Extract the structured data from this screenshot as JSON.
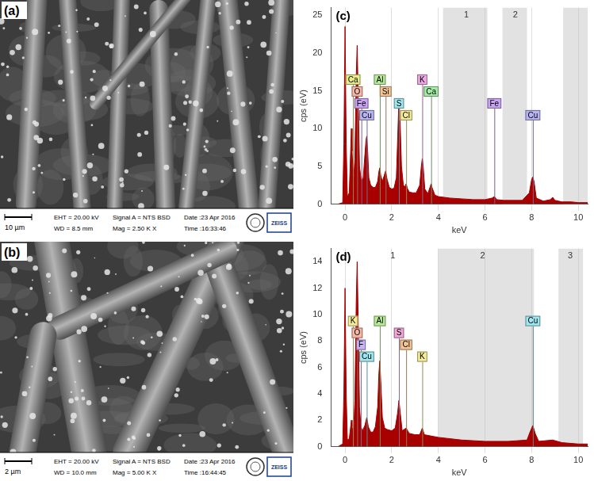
{
  "images": [
    {
      "panel": "(a)",
      "scale_bar": "10 µm",
      "info": [
        "EHT = 20.00 kV",
        "WD = 8.5 mm",
        "Signal A = NTS BSD",
        "Mag = 2.50 K X",
        "Date :23 Apr 2016",
        "Time :16:33:46"
      ],
      "logo": "ZEISS"
    },
    {
      "panel": "(b)",
      "scale_bar": "2 µm",
      "info": [
        "EHT = 20.00 kV",
        "WD = 10.0 mm",
        "Signal A = NTS BSD",
        "Mag = 5.00 K X",
        "Date :23 Apr 2016",
        "Time :16:44:45"
      ],
      "logo": "ZEISS"
    }
  ],
  "chart_data": [
    {
      "type": "area",
      "panel": "(c)",
      "x_label": "keV",
      "y_label": "cps (eV)",
      "color": "#a80000",
      "x": [
        -0.3,
        -0.1,
        -0.05,
        0,
        0.05,
        0.1,
        0.18,
        0.24,
        0.27,
        0.3,
        0.36,
        0.42,
        0.48,
        0.52,
        0.56,
        0.62,
        0.7,
        0.78,
        0.85,
        0.9,
        0.93,
        0.97,
        1.02,
        1.1,
        1.2,
        1.3,
        1.4,
        1.45,
        1.49,
        1.53,
        1.6,
        1.68,
        1.74,
        1.8,
        1.9,
        2.0,
        2.1,
        2.2,
        2.26,
        2.31,
        2.36,
        2.42,
        2.5,
        2.57,
        2.62,
        2.67,
        2.75,
        2.9,
        3.05,
        3.2,
        3.27,
        3.31,
        3.35,
        3.42,
        3.55,
        3.65,
        3.69,
        3.73,
        3.85,
        4.0,
        4.5,
        5.0,
        5.5,
        6.0,
        6.3,
        6.4,
        6.5,
        6.8,
        7.2,
        7.6,
        7.9,
        8.0,
        8.05,
        8.1,
        8.2,
        8.5,
        8.8,
        8.9,
        9.0,
        9.3,
        9.7,
        10.0,
        10.4
      ],
      "values": [
        0,
        0.2,
        8,
        23.5,
        8,
        1,
        1.5,
        7,
        10,
        7,
        3,
        6,
        17,
        21,
        15,
        5,
        3,
        3.5,
        6.5,
        8.5,
        9,
        7,
        3.5,
        2.5,
        2.2,
        2.2,
        3,
        4.3,
        4.8,
        3.8,
        3,
        3.8,
        4.4,
        3.3,
        2.2,
        2,
        2.1,
        3.5,
        9,
        14,
        11,
        5,
        2.5,
        2.3,
        2.7,
        2.1,
        1.6,
        1.5,
        1.5,
        2.5,
        5,
        6,
        5,
        2,
        1.4,
        2.3,
        2.7,
        2.2,
        1.2,
        1,
        0.8,
        0.7,
        0.6,
        0.6,
        0.8,
        1,
        0.6,
        0.5,
        0.5,
        0.5,
        1.5,
        3.3,
        3.6,
        3,
        0.8,
        0.4,
        0.6,
        0.9,
        0.5,
        0.3,
        0.3,
        0.2,
        0.2
      ],
      "xlim": [
        -0.6,
        10.4
      ],
      "xticks": [
        0,
        2,
        4,
        6,
        8,
        10
      ],
      "ylim": [
        0,
        26
      ],
      "yticks": [
        0,
        5,
        10,
        15,
        20,
        25
      ],
      "grid": true,
      "bands": [
        [
          4.2,
          6.1
        ],
        [
          6.75,
          7.8
        ],
        [
          9.35,
          10.4
        ]
      ],
      "band_labels": [
        {
          "text": "1",
          "x": 5.2
        },
        {
          "text": "2",
          "x": 7.3
        }
      ],
      "markers": [
        {
          "text": "Ca",
          "x": 0.34,
          "color": "#e8ec8a"
        },
        {
          "text": "O",
          "x": 0.52,
          "color": "#f5b7a6"
        },
        {
          "text": "Fe",
          "x": 0.7,
          "color": "#c8a4f2"
        },
        {
          "text": "Cu",
          "x": 0.93,
          "color": "#b8b4f2"
        },
        {
          "text": "Al",
          "x": 1.49,
          "color": "#b8ec9a"
        },
        {
          "text": "Si",
          "x": 1.74,
          "color": "#f5c496"
        },
        {
          "text": "S",
          "x": 2.31,
          "color": "#9fe6ef"
        },
        {
          "text": "Cl",
          "x": 2.62,
          "color": "#f5ec9a"
        },
        {
          "text": "K",
          "x": 3.31,
          "color": "#f0a8e6"
        },
        {
          "text": "Ca",
          "x": 3.69,
          "color": "#a6eca6"
        },
        {
          "text": "Fe",
          "x": 6.4,
          "color": "#c8a4f2"
        },
        {
          "text": "Cu",
          "x": 8.05,
          "color": "#b8b4f2"
        }
      ]
    },
    {
      "type": "area",
      "panel": "(d)",
      "x_label": "keV",
      "y_label": "cps (eV)",
      "color": "#a80000",
      "x": [
        -0.3,
        -0.1,
        -0.05,
        0,
        0.05,
        0.1,
        0.18,
        0.24,
        0.27,
        0.3,
        0.36,
        0.42,
        0.48,
        0.52,
        0.56,
        0.62,
        0.68,
        0.75,
        0.85,
        0.93,
        1.0,
        1.1,
        1.2,
        1.3,
        1.4,
        1.45,
        1.49,
        1.53,
        1.6,
        1.7,
        1.8,
        2.0,
        2.15,
        2.25,
        2.31,
        2.37,
        2.45,
        2.62,
        2.75,
        3.0,
        3.2,
        3.31,
        3.4,
        3.7,
        4.0,
        5.0,
        6.0,
        7.0,
        7.8,
        7.95,
        8.05,
        8.15,
        8.3,
        8.9,
        9.3,
        10.0,
        10.4
      ],
      "values": [
        0,
        0.2,
        4,
        12,
        4,
        0.5,
        0.6,
        1.5,
        2,
        1.5,
        1,
        3.5,
        11,
        14,
        10,
        3,
        1.5,
        1.2,
        1.6,
        2.2,
        1.5,
        1.1,
        1.1,
        1.5,
        3,
        5.5,
        6.5,
        5,
        2.2,
        1.4,
        1.3,
        1.2,
        1.4,
        2.5,
        3.5,
        2.5,
        1.2,
        1.4,
        1,
        0.9,
        0.9,
        1.4,
        0.9,
        0.8,
        0.7,
        0.5,
        0.4,
        0.4,
        0.5,
        1.2,
        1.6,
        1,
        0.4,
        0.5,
        0.3,
        0.2,
        0.2
      ],
      "xlim": [
        -0.6,
        10.4
      ],
      "xticks": [
        0,
        2,
        4,
        6,
        8,
        10
      ],
      "ylim": [
        0,
        15
      ],
      "yticks": [
        0,
        2,
        4,
        6,
        8,
        10,
        12,
        14
      ],
      "grid": true,
      "bands": [
        [
          4.0,
          8.1
        ],
        [
          9.15,
          10.2
        ]
      ],
      "band_labels": [
        {
          "text": "1",
          "x": 2.05
        },
        {
          "text": "2",
          "x": 5.9
        },
        {
          "text": "3",
          "x": 9.65
        }
      ],
      "markers": [
        {
          "text": "K",
          "x": 0.34,
          "color": "#f5ec9a"
        },
        {
          "text": "O",
          "x": 0.52,
          "color": "#f5b7a6"
        },
        {
          "text": "F",
          "x": 0.68,
          "color": "#c8b4f2"
        },
        {
          "text": "Cu",
          "x": 0.93,
          "color": "#9fe6ef"
        },
        {
          "text": "Al",
          "x": 1.49,
          "color": "#b8ec9a"
        },
        {
          "text": "S",
          "x": 2.31,
          "color": "#f0a8d8"
        },
        {
          "text": "Cl",
          "x": 2.62,
          "color": "#f5c496"
        },
        {
          "text": "K",
          "x": 3.31,
          "color": "#f5ec9a"
        },
        {
          "text": "Cu",
          "x": 8.05,
          "color": "#9fe6ef"
        }
      ]
    }
  ]
}
